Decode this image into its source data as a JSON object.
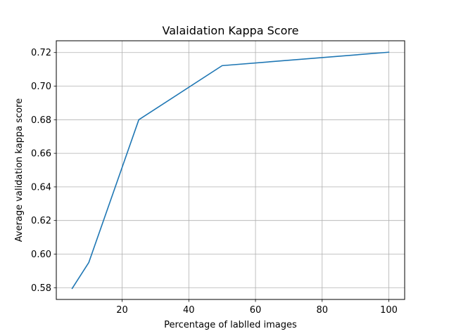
{
  "chart_data": {
    "type": "line",
    "title": "Valaidation Kappa Score",
    "xlabel": "Percentage of lablled images",
    "ylabel": "Average validation kappa score",
    "xlim": [
      0.25,
      104.75
    ],
    "ylim": [
      0.573,
      0.727
    ],
    "xticks": [
      20,
      40,
      60,
      80,
      100
    ],
    "yticks": [
      0.58,
      0.6,
      0.62,
      0.64,
      0.66,
      0.68,
      0.7,
      0.72
    ],
    "xtick_labels": [
      "20",
      "40",
      "60",
      "80",
      "100"
    ],
    "ytick_labels": [
      "0.58",
      "0.60",
      "0.62",
      "0.64",
      "0.66",
      "0.68",
      "0.70",
      "0.72"
    ],
    "grid": true,
    "series": [
      {
        "x": [
          5,
          10,
          25,
          50,
          100
        ],
        "y": [
          0.5795,
          0.595,
          0.68,
          0.7122,
          0.7202
        ],
        "color": "#1f77b4"
      }
    ]
  }
}
